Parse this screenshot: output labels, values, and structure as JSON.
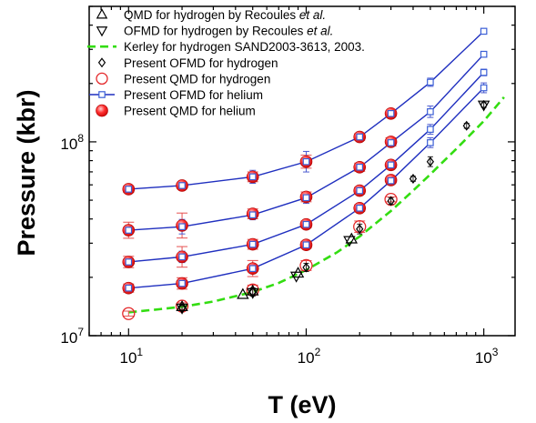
{
  "chart_data": {
    "type": "scatter",
    "title": "",
    "xlabel": "T (eV)",
    "ylabel": "Pressure (kbr)",
    "xscale": "log",
    "yscale": "log",
    "xlim": [
      6,
      1500
    ],
    "ylim": [
      10000000,
      500000000
    ],
    "x_ticks": [
      {
        "value": 10,
        "base": "10",
        "exp": "1"
      },
      {
        "value": 100,
        "base": "10",
        "exp": "2"
      },
      {
        "value": 1000,
        "base": "10",
        "exp": "3"
      }
    ],
    "y_ticks": [
      {
        "value": 10000000,
        "base": "10",
        "exp": "7"
      },
      {
        "value": 100000000,
        "base": "10",
        "exp": "8"
      }
    ],
    "grid": false,
    "legend_position": "top-left",
    "legend": [
      {
        "key": "qmd_h_recoules",
        "parts": [
          {
            "t": "QMD for hydrogen by Recoules "
          },
          {
            "t": "et al.",
            "i": true
          }
        ]
      },
      {
        "key": "ofmd_h_recoules",
        "parts": [
          {
            "t": "OFMD for hydrogen by Recoules "
          },
          {
            "t": "et al.",
            "i": true
          }
        ]
      },
      {
        "key": "kerley",
        "parts": [
          {
            "t": "Kerley for hydrogen SAND2003-3613, 2003."
          }
        ]
      },
      {
        "key": "ofmd_h",
        "parts": [
          {
            "t": "Present OFMD for hydrogen"
          }
        ]
      },
      {
        "key": "qmd_h",
        "parts": [
          {
            "t": "Present QMD for hydrogen"
          }
        ]
      },
      {
        "key": "ofmd_he",
        "parts": [
          {
            "t": "Present OFMD for helium"
          }
        ]
      },
      {
        "key": "qmd_he",
        "parts": [
          {
            "t": "Present QMD for helium"
          }
        ]
      }
    ],
    "kerley": {
      "x": [
        10,
        15,
        20,
        30,
        50,
        70,
        100,
        150,
        200,
        300,
        400,
        500,
        700,
        1000,
        1300
      ],
      "y": [
        13200000,
        13700000,
        14100000,
        15000000,
        16800000,
        18700000,
        21800000,
        27000000,
        32500000,
        44000000,
        56000000,
        68000000,
        92000000,
        128000000,
        170000000
      ]
    },
    "qmd_h_recoules": {
      "x": [
        20,
        44,
        50,
        90,
        180
      ],
      "y": [
        14100000,
        16300000,
        17000000,
        21000000,
        31500000
      ]
    },
    "ofmd_h_recoules": {
      "x": [
        20,
        50,
        88,
        175,
        1000
      ],
      "y": [
        13900000,
        16700000,
        20300000,
        31000000,
        155000000
      ]
    },
    "ofmd_h": {
      "x": [
        20,
        50,
        100,
        200,
        300,
        400,
        500,
        800,
        1000
      ],
      "y": [
        13900000,
        16800000,
        22500000,
        35500000,
        49500000,
        64500000,
        79000000,
        121000000,
        155000000
      ],
      "err": [
        0.03,
        0.05,
        0.05,
        0.06,
        0.04,
        0.03,
        0.06,
        0.03,
        0.03
      ]
    },
    "qmd_h": {
      "x": [
        10,
        20,
        50,
        100,
        200,
        300
      ],
      "y": [
        13000000,
        14200000,
        17200000,
        23000000,
        36500000,
        50500000
      ],
      "err": [
        0.03,
        0.04,
        0.06,
        0.06,
        0.07,
        0.03
      ]
    },
    "isochores": [
      {
        "x": [
          10,
          20,
          50,
          100,
          200,
          300,
          500,
          1000
        ],
        "ofmd": [
          17600000,
          18600000,
          22200000,
          29400000,
          45500000,
          63000000,
          99000000,
          190000000
        ],
        "qmd": [
          17600000,
          18600000,
          22200000,
          29400000,
          45500000,
          63500000
        ],
        "qmd_err": [
          0.05,
          0.07,
          0.1,
          0.04,
          0.04,
          0.03
        ],
        "ofmd_err": [
          0.03,
          0.03,
          0.04,
          0.04,
          0.04,
          0.03,
          0.06,
          0.06
        ]
      },
      {
        "x": [
          10,
          20,
          50,
          100,
          200,
          300,
          500,
          1000
        ],
        "ofmd": [
          24000000,
          25500000,
          29600000,
          37500000,
          56000000,
          76000000,
          116000000,
          228000000
        ],
        "qmd": [
          24000000,
          25500000,
          29600000,
          37500000,
          56000000,
          76000000
        ],
        "qmd_err": [
          0.07,
          0.13,
          0.06,
          0.04,
          0.04,
          0.03
        ],
        "ofmd_err": [
          0.06,
          0.07,
          0.04,
          0.04,
          0.04,
          0.03,
          0.06,
          0.04
        ]
      },
      {
        "x": [
          10,
          20,
          50,
          100,
          200,
          300,
          500,
          1000
        ],
        "ofmd": [
          35000000,
          36500000,
          42000000,
          51500000,
          74000000,
          99000000,
          143000000,
          283000000
        ],
        "qmd": [
          35000000,
          37000000,
          42500000,
          52000000,
          74000000,
          100000000
        ],
        "qmd_err": [
          0.1,
          0.16,
          0.06,
          0.06,
          0.05,
          0.05
        ],
        "ofmd_err": [
          0.06,
          0.09,
          0.06,
          0.07,
          0.04,
          0.03,
          0.07,
          0.03
        ]
      },
      {
        "x": [
          10,
          20,
          50,
          100,
          200,
          300,
          500,
          1000
        ],
        "ofmd": [
          57000000,
          59500000,
          66000000,
          79000000,
          106000000,
          140000000,
          203000000,
          372000000
        ],
        "qmd": [
          57000000,
          59500000,
          66000000,
          79000000,
          106000000,
          140000000
        ],
        "qmd_err": [
          0.04,
          0.03,
          0.06,
          0.08,
          0.04,
          0.03
        ],
        "ofmd_err": [
          0.04,
          0.03,
          0.08,
          0.13,
          0.06,
          0.03,
          0.05,
          0.03
        ]
      }
    ],
    "colors": {
      "helium_line": "#1f2fbf",
      "helium_marker": "#3b5fd6",
      "qmd_red": "#e4282a",
      "kerley": "#33dd11",
      "error_red": "#e65050",
      "error_blue": "#4b5bd0",
      "black": "#000000"
    }
  }
}
